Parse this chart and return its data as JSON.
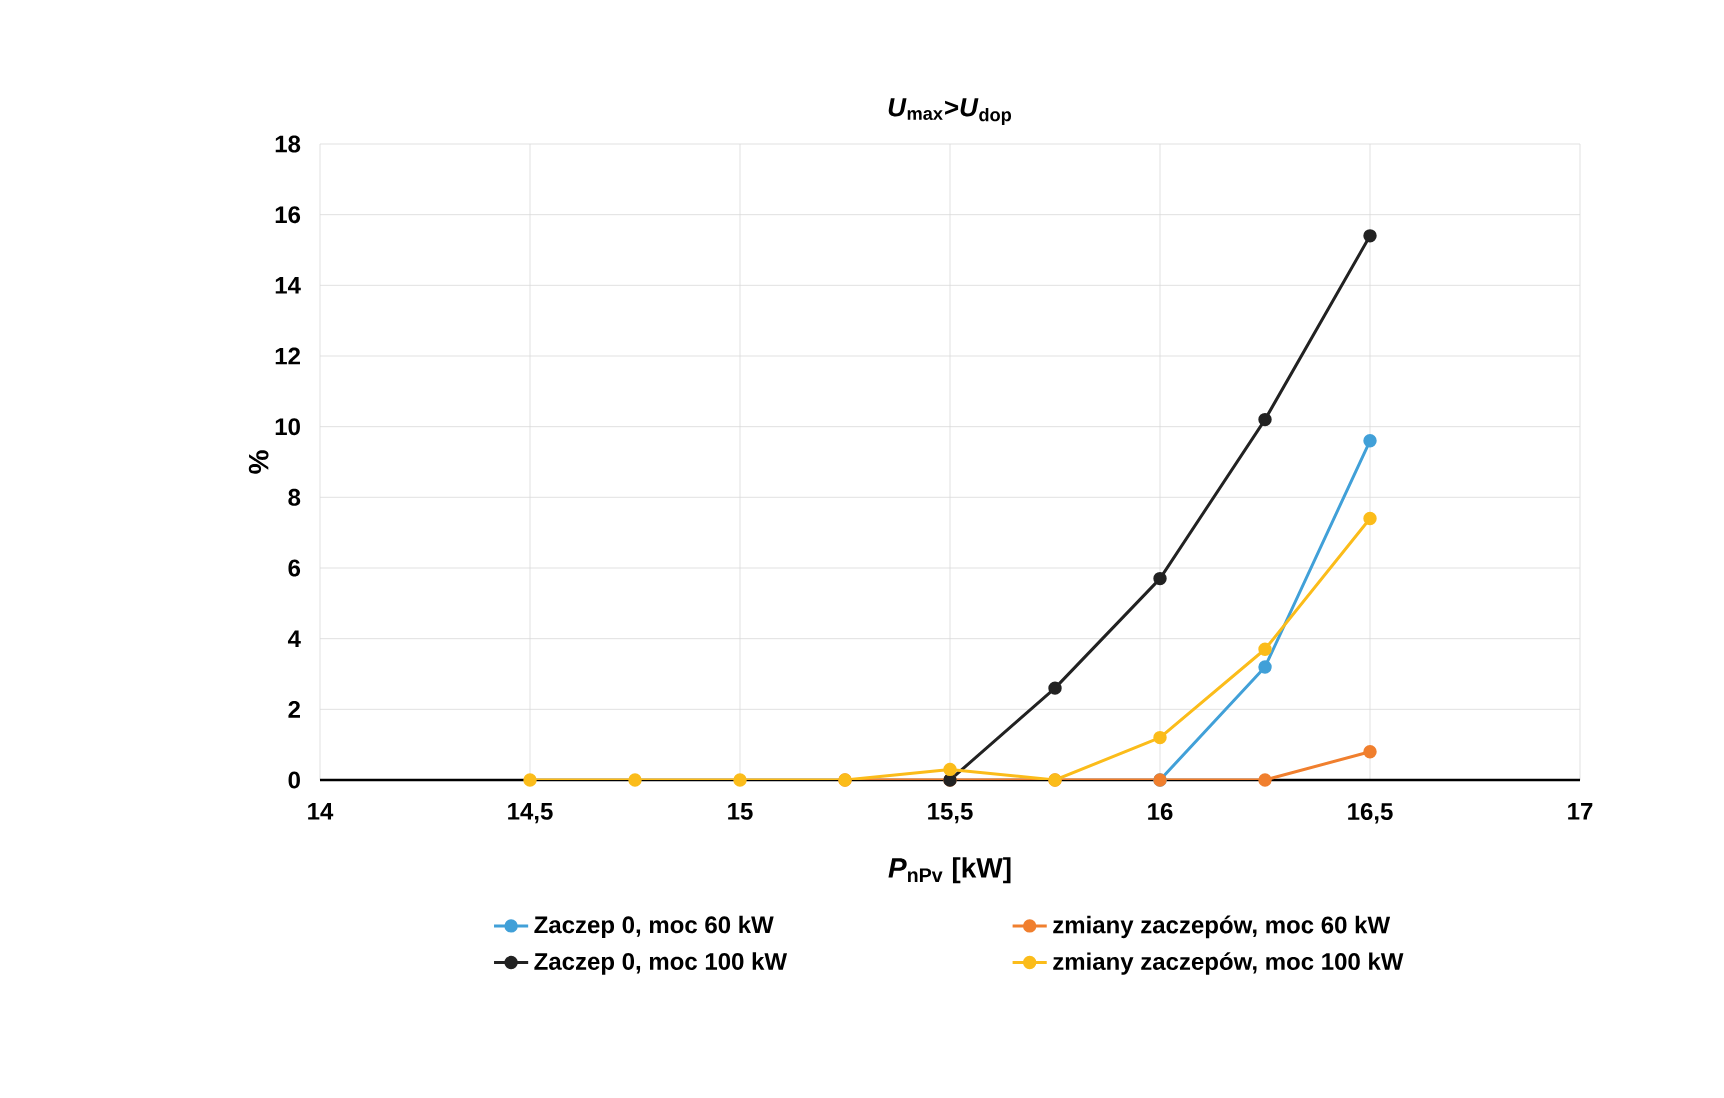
{
  "chart_data": {
    "type": "line",
    "title": "*U*$_{max}$>*U*$_{dop}$",
    "xlabel": "*P*$_{nPv}$ [kW]",
    "ylabel": "%",
    "x": [
      14.5,
      14.75,
      15,
      15.25,
      15.5,
      15.75,
      16,
      16.25,
      16.5
    ],
    "series": [
      {
        "name": "Zaczep 0, moc 60 kW",
        "color": "#41a0d8",
        "values": [
          null,
          null,
          null,
          null,
          null,
          null,
          0,
          3.2,
          9.6
        ]
      },
      {
        "name": "zmiany zaczepów, moc 60 kW",
        "color": "#f07f2e",
        "values": [
          null,
          null,
          null,
          0,
          0,
          0,
          0,
          0,
          0.8
        ]
      },
      {
        "name": "Zaczep 0, moc 100 kW",
        "color": "#222222",
        "values": [
          null,
          null,
          null,
          null,
          0,
          2.6,
          5.7,
          10.2,
          15.4
        ]
      },
      {
        "name": "zmiany zaczepów, moc 100 kW",
        "color": "#fbbc1a",
        "values": [
          0,
          0,
          0,
          0,
          0.3,
          0,
          1.2,
          3.7,
          7.4
        ]
      }
    ],
    "xlim": [
      14,
      17
    ],
    "xticks": [
      14,
      {
        "value": 14.5,
        "label": "14,5"
      },
      15,
      {
        "value": 15.5,
        "label": "15,5"
      },
      16,
      {
        "value": 16.5,
        "label": "16,5"
      },
      17
    ],
    "ylim": [
      0,
      18
    ],
    "yticks": [
      0,
      2,
      4,
      6,
      8,
      10,
      12,
      14,
      16,
      18
    ],
    "grid": true,
    "legend": "bottom",
    "marker": "circle",
    "line_style": "solid"
  }
}
